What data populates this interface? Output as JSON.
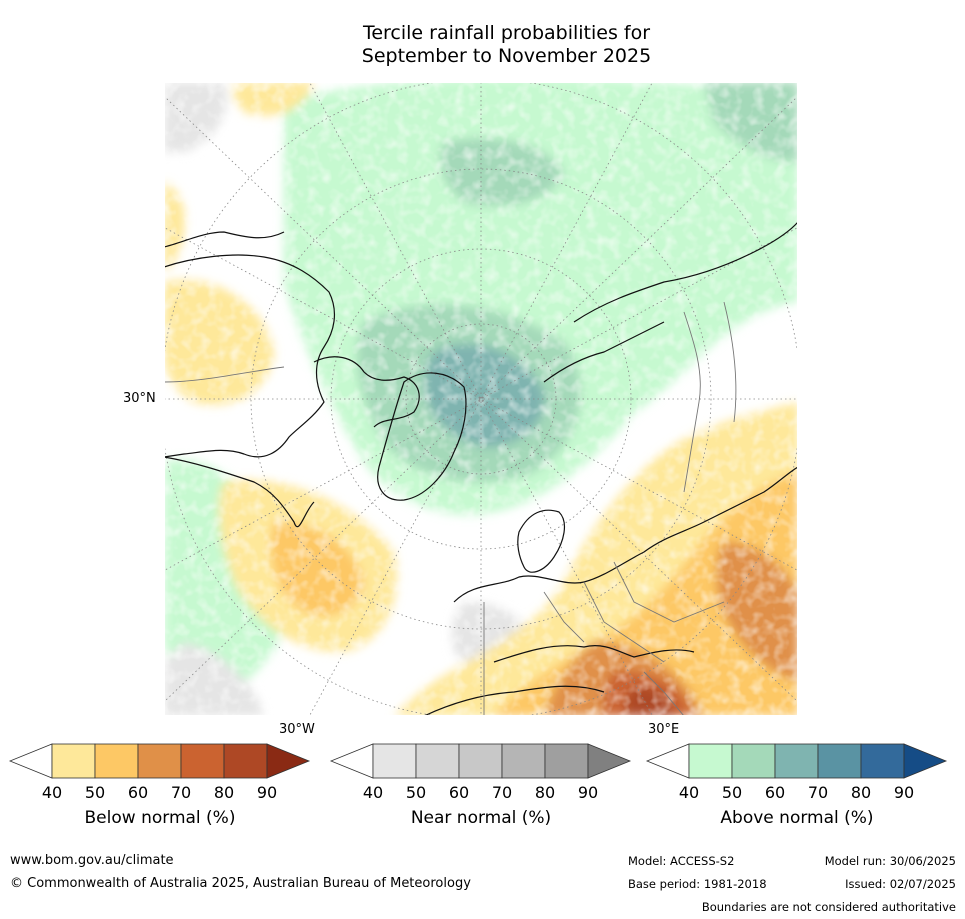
{
  "title": {
    "line1": "Tercile rainfall probabilities for",
    "line2": "September to November 2025"
  },
  "map": {
    "labels": {
      "lat_30n": "30°N",
      "lon_30w": "30°W",
      "lon_30e": "30°E"
    },
    "colors": {
      "below": [
        "#fee89a",
        "#fdc865",
        "#e09048",
        "#cb6330",
        "#ae4825",
        "#8a2a14"
      ],
      "near": [
        "#e5e5e5",
        "#d6d6d6",
        "#c8c8c8",
        "#b5b5b5",
        "#9f9f9f",
        "#808080"
      ],
      "above": [
        "#c6f9d0",
        "#a4d9b9",
        "#7fb4b0",
        "#5a93a3",
        "#336a9b",
        "#154c86"
      ]
    }
  },
  "colorbars": [
    {
      "id": "below",
      "title": "Below normal (%)",
      "ticks": [
        "40",
        "50",
        "60",
        "70",
        "80",
        "90"
      ]
    },
    {
      "id": "near",
      "title": "Near normal (%)",
      "ticks": [
        "40",
        "50",
        "60",
        "70",
        "80",
        "90"
      ]
    },
    {
      "id": "above",
      "title": "Above normal (%)",
      "ticks": [
        "40",
        "50",
        "60",
        "70",
        "80",
        "90"
      ]
    }
  ],
  "footer": {
    "url": "www.bom.gov.au/climate",
    "copyright": "© Commonwealth of Australia 2025, Australian Bureau of Meteorology",
    "model": "Model: ACCESS-S2",
    "base_period": "Base period: 1981-2018",
    "model_run": "Model run: 30/06/2025",
    "issued": "Issued: 02/07/2025",
    "disclaimer": "Boundaries are not considered authoritative"
  }
}
